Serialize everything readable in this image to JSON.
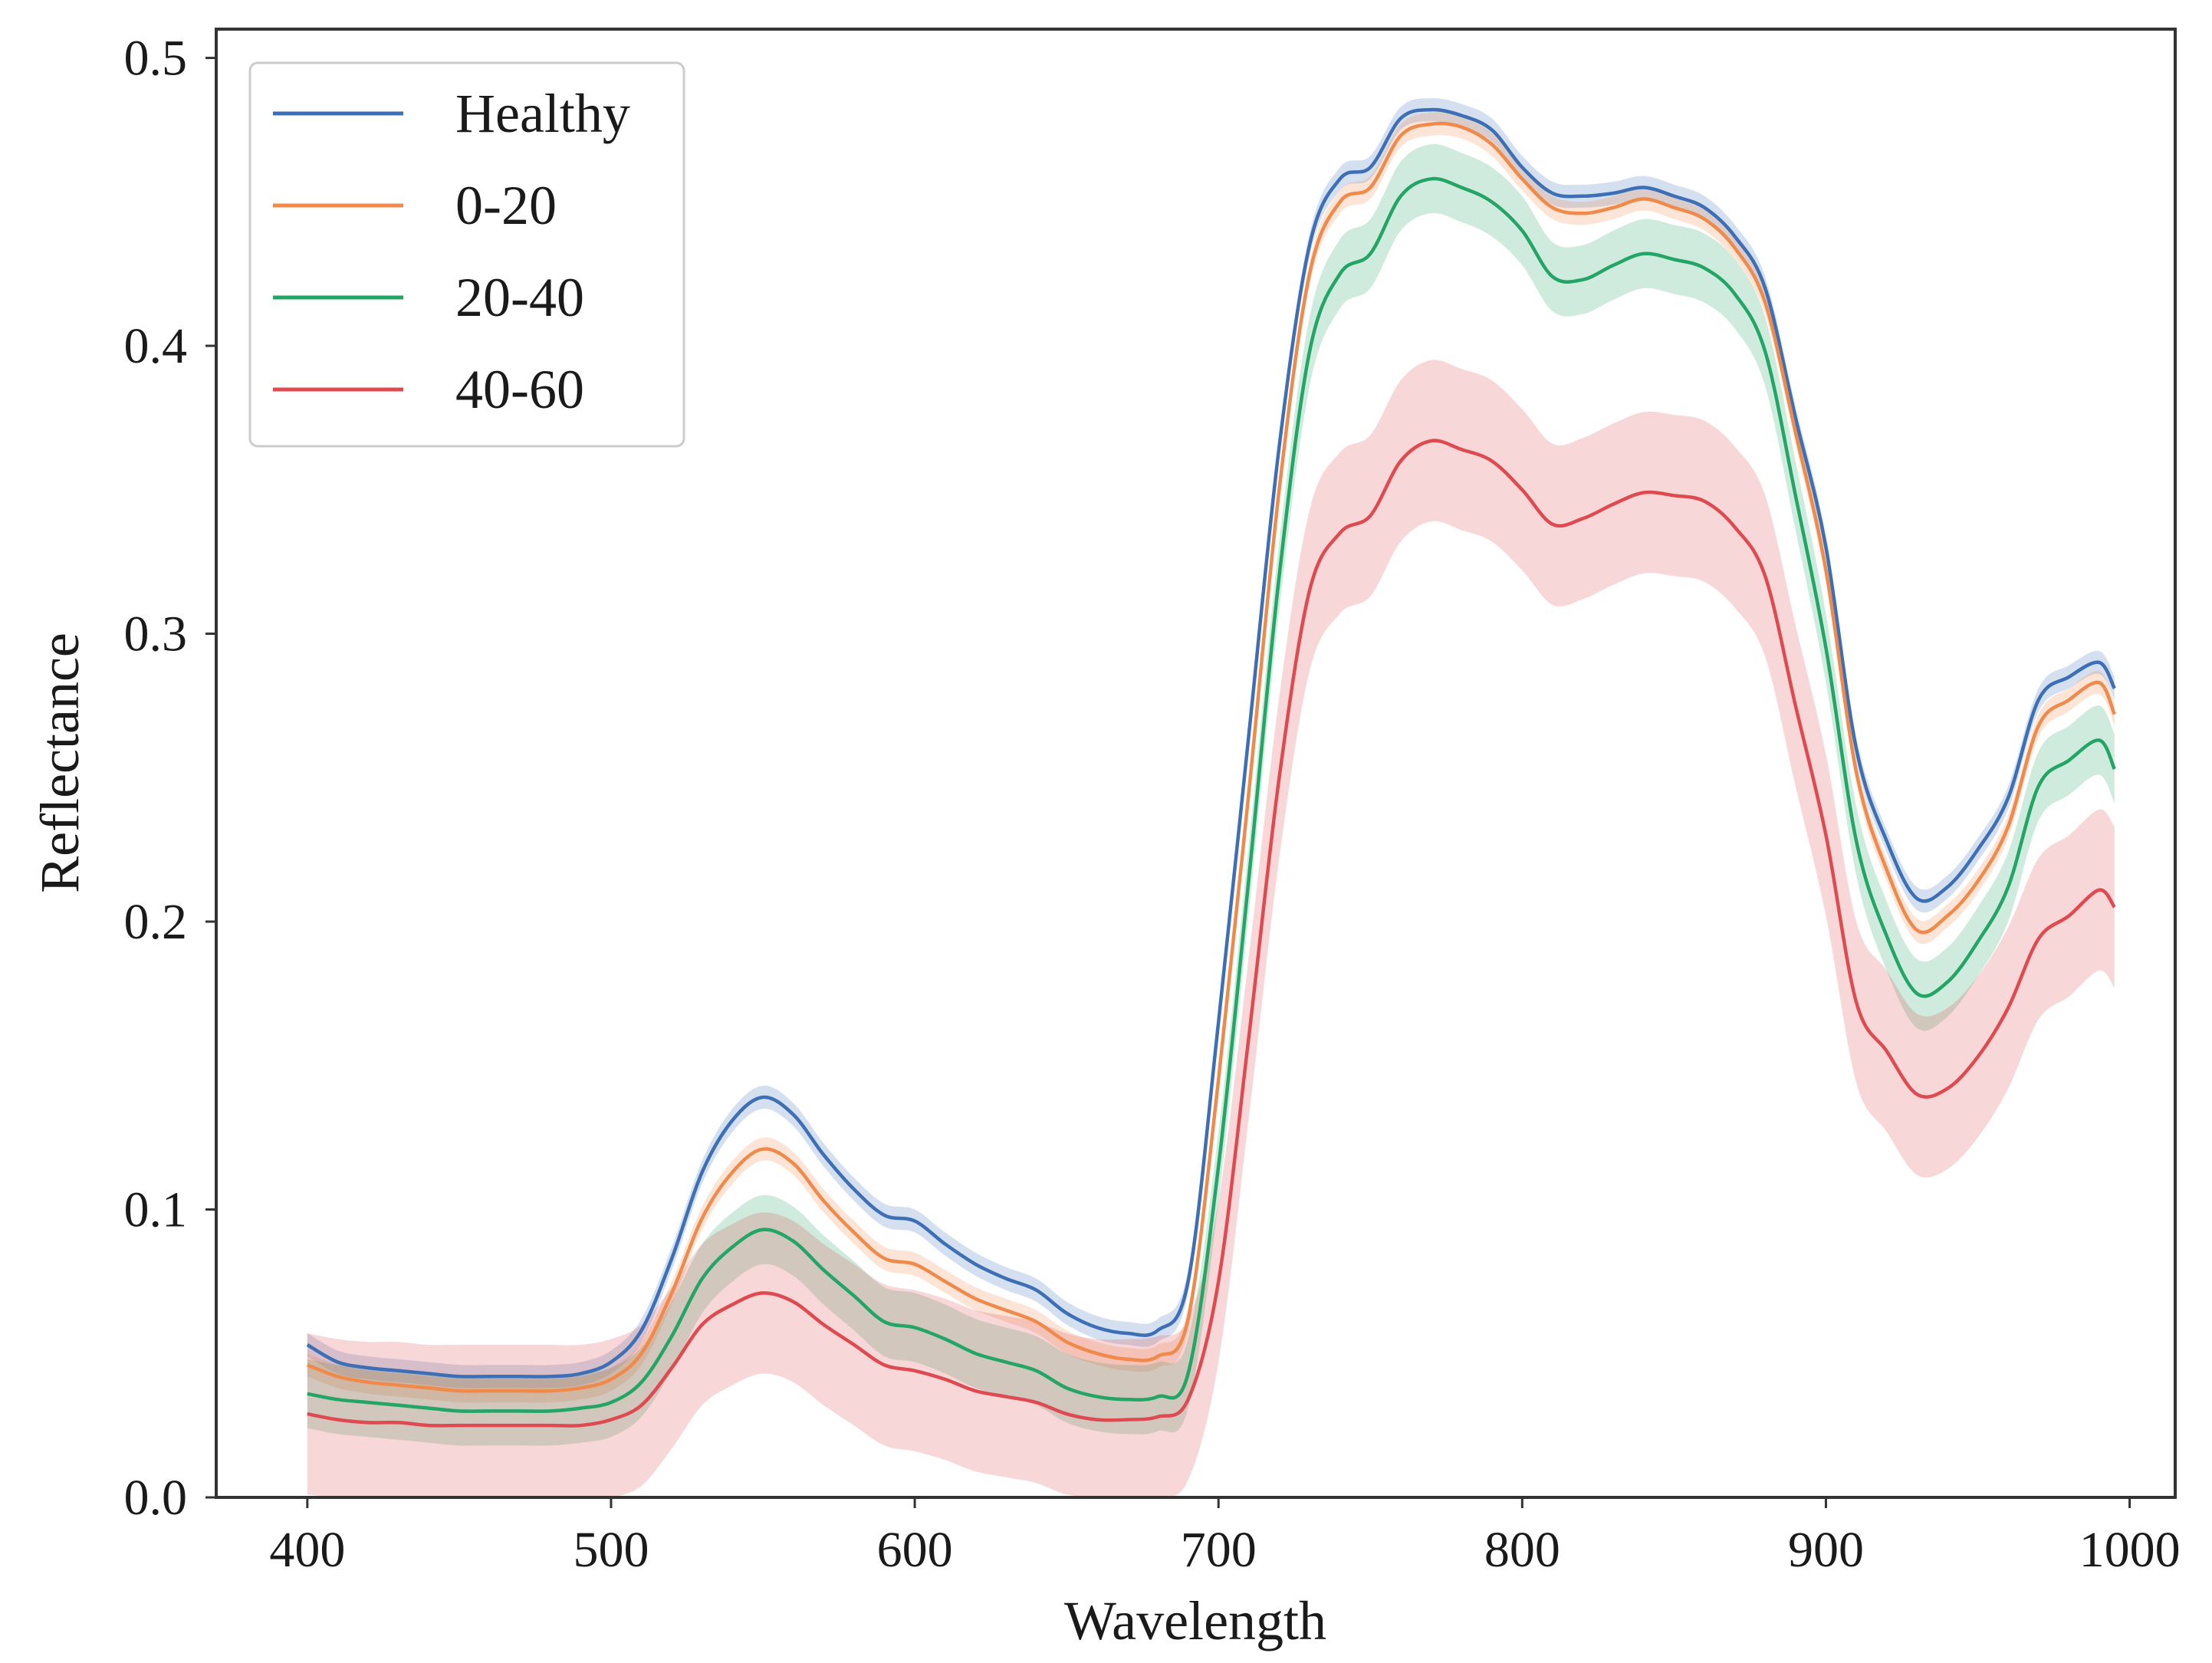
{
  "chart_data": {
    "type": "line",
    "title": "",
    "xlabel": "Wavelength",
    "ylabel": "Reflectance",
    "xlim": [
      370,
      1015
    ],
    "ylim": [
      0.0,
      0.51
    ],
    "xticks": [
      400,
      500,
      600,
      700,
      800,
      900,
      1000
    ],
    "yticks": [
      0.0,
      0.1,
      0.2,
      0.3,
      0.4,
      0.5
    ],
    "xtick_labels": [
      "400",
      "500",
      "600",
      "700",
      "800",
      "900",
      "1000"
    ],
    "ytick_labels": [
      "0.0",
      "0.1",
      "0.2",
      "0.3",
      "0.4",
      "0.5"
    ],
    "grid": false,
    "legend_position": "top-left",
    "series": [
      {
        "name": "Healthy",
        "color": "#3d6fb6",
        "x": [
          400,
          410,
          420,
          430,
          440,
          450,
          460,
          470,
          480,
          490,
          500,
          510,
          520,
          530,
          540,
          550,
          560,
          570,
          580,
          590,
          600,
          610,
          620,
          630,
          640,
          650,
          660,
          670,
          680,
          690,
          700,
          710,
          720,
          730,
          740,
          750,
          760,
          770,
          780,
          790,
          800,
          810,
          820,
          830,
          840,
          850,
          860,
          870,
          880,
          890,
          900,
          910,
          920,
          930,
          940,
          950,
          960,
          970,
          980,
          990,
          995
        ],
        "y": [
          0.053,
          0.047,
          0.045,
          0.044,
          0.043,
          0.042,
          0.042,
          0.042,
          0.042,
          0.043,
          0.047,
          0.058,
          0.083,
          0.113,
          0.131,
          0.139,
          0.133,
          0.119,
          0.107,
          0.098,
          0.096,
          0.088,
          0.081,
          0.076,
          0.072,
          0.064,
          0.059,
          0.057,
          0.058,
          0.075,
          0.165,
          0.265,
          0.365,
          0.435,
          0.458,
          0.462,
          0.479,
          0.482,
          0.48,
          0.475,
          0.462,
          0.453,
          0.452,
          0.453,
          0.455,
          0.452,
          0.448,
          0.438,
          0.42,
          0.375,
          0.33,
          0.26,
          0.228,
          0.208,
          0.212,
          0.225,
          0.243,
          0.277,
          0.285,
          0.29,
          0.281
        ],
        "band": 0.004
      },
      {
        "name": "0-20",
        "color": "#f08a4b",
        "x": [
          400,
          410,
          420,
          430,
          440,
          450,
          460,
          470,
          480,
          490,
          500,
          510,
          520,
          530,
          540,
          550,
          560,
          570,
          580,
          590,
          600,
          610,
          620,
          630,
          640,
          650,
          660,
          670,
          680,
          690,
          700,
          710,
          720,
          730,
          740,
          750,
          760,
          770,
          780,
          790,
          800,
          810,
          820,
          830,
          840,
          850,
          860,
          870,
          880,
          890,
          900,
          910,
          920,
          930,
          940,
          950,
          960,
          970,
          980,
          990,
          995
        ],
        "y": [
          0.046,
          0.042,
          0.04,
          0.039,
          0.038,
          0.037,
          0.037,
          0.037,
          0.037,
          0.038,
          0.041,
          0.05,
          0.071,
          0.097,
          0.113,
          0.121,
          0.116,
          0.103,
          0.092,
          0.083,
          0.081,
          0.075,
          0.069,
          0.065,
          0.061,
          0.054,
          0.05,
          0.048,
          0.049,
          0.062,
          0.145,
          0.245,
          0.35,
          0.425,
          0.45,
          0.455,
          0.473,
          0.477,
          0.476,
          0.47,
          0.458,
          0.448,
          0.446,
          0.448,
          0.451,
          0.448,
          0.444,
          0.434,
          0.415,
          0.37,
          0.322,
          0.252,
          0.218,
          0.197,
          0.202,
          0.214,
          0.233,
          0.268,
          0.277,
          0.283,
          0.272
        ],
        "band": 0.004
      },
      {
        "name": "20-40",
        "color": "#23a565",
        "x": [
          400,
          410,
          420,
          430,
          440,
          450,
          460,
          470,
          480,
          490,
          500,
          510,
          520,
          530,
          540,
          550,
          560,
          570,
          580,
          590,
          600,
          610,
          620,
          630,
          640,
          650,
          660,
          670,
          680,
          690,
          700,
          710,
          720,
          730,
          740,
          750,
          760,
          770,
          780,
          790,
          800,
          810,
          820,
          830,
          840,
          850,
          860,
          870,
          880,
          890,
          900,
          910,
          920,
          930,
          940,
          950,
          960,
          970,
          980,
          990,
          995
        ],
        "y": [
          0.036,
          0.034,
          0.033,
          0.032,
          0.031,
          0.03,
          0.03,
          0.03,
          0.03,
          0.031,
          0.033,
          0.04,
          0.056,
          0.076,
          0.087,
          0.093,
          0.089,
          0.079,
          0.07,
          0.061,
          0.059,
          0.055,
          0.05,
          0.047,
          0.044,
          0.038,
          0.035,
          0.034,
          0.035,
          0.043,
          0.115,
          0.215,
          0.32,
          0.398,
          0.425,
          0.432,
          0.452,
          0.458,
          0.455,
          0.45,
          0.44,
          0.424,
          0.423,
          0.428,
          0.432,
          0.43,
          0.427,
          0.418,
          0.398,
          0.348,
          0.295,
          0.228,
          0.195,
          0.175,
          0.179,
          0.193,
          0.212,
          0.247,
          0.256,
          0.263,
          0.253
        ],
        "band": 0.012
      },
      {
        "name": "40-60",
        "color": "#de4a4f",
        "x": [
          400,
          410,
          420,
          430,
          440,
          450,
          460,
          470,
          480,
          490,
          500,
          510,
          520,
          530,
          540,
          550,
          560,
          570,
          580,
          590,
          600,
          610,
          620,
          630,
          640,
          650,
          660,
          670,
          680,
          690,
          700,
          710,
          720,
          730,
          740,
          750,
          760,
          770,
          780,
          790,
          800,
          810,
          820,
          830,
          840,
          850,
          860,
          870,
          880,
          890,
          900,
          910,
          920,
          930,
          940,
          950,
          960,
          970,
          980,
          990,
          995
        ],
        "y": [
          0.029,
          0.027,
          0.026,
          0.026,
          0.025,
          0.025,
          0.025,
          0.025,
          0.025,
          0.025,
          0.027,
          0.032,
          0.045,
          0.06,
          0.067,
          0.071,
          0.068,
          0.06,
          0.053,
          0.046,
          0.044,
          0.041,
          0.037,
          0.035,
          0.033,
          0.029,
          0.027,
          0.027,
          0.028,
          0.034,
          0.075,
          0.16,
          0.25,
          0.315,
          0.335,
          0.341,
          0.36,
          0.367,
          0.364,
          0.36,
          0.35,
          0.338,
          0.34,
          0.345,
          0.349,
          0.348,
          0.346,
          0.337,
          0.32,
          0.275,
          0.23,
          0.172,
          0.155,
          0.14,
          0.142,
          0.153,
          0.17,
          0.194,
          0.202,
          0.211,
          0.205
        ],
        "band": 0.028
      }
    ]
  }
}
